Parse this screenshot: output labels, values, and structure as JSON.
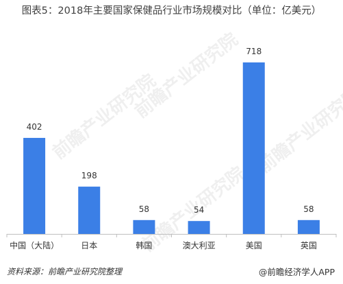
{
  "title": "图表5：2018年主要国家保健品行业市场规模对比（单位：亿美元）",
  "footer": {
    "source": "资料来源：前瞻产业研究院整理",
    "brand": "@前瞻经济学人APP"
  },
  "watermark": "前瞻产业研究院",
  "colors": {
    "bar": "#3b7fe6",
    "axis": "#bfbfbf"
  },
  "chart_data": {
    "type": "bar",
    "title": "图表5：2018年主要国家保健品行业市场规模对比（单位：亿美元）",
    "categories": [
      "中国（大陆）",
      "日本",
      "韩国",
      "澳大利亚",
      "美国",
      "英国"
    ],
    "values": [
      402,
      198,
      58,
      54,
      718,
      58
    ],
    "ylim": [
      0,
      800
    ],
    "grid": false,
    "xlabel": "",
    "ylabel": ""
  }
}
